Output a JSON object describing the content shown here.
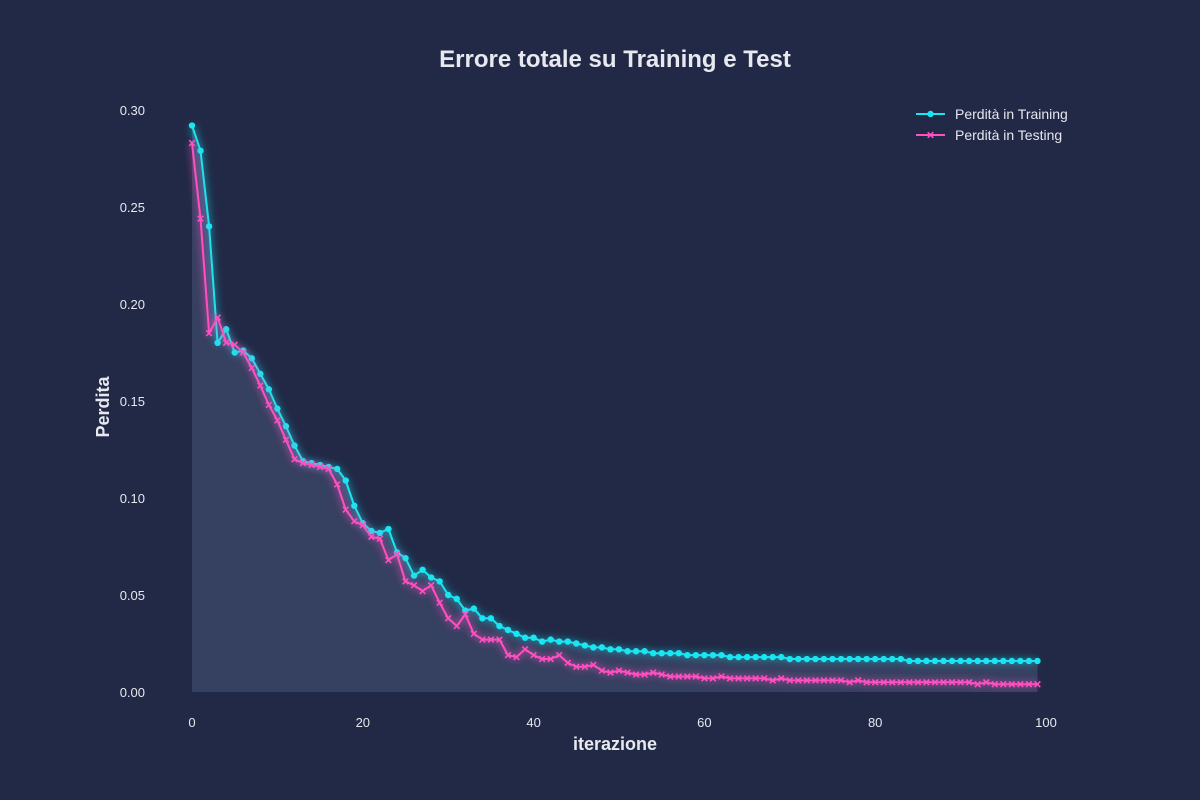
{
  "chart_data": {
    "type": "line",
    "title": "Errore totale su Training e Test",
    "xlabel": "iterazione",
    "ylabel": "Perdita",
    "xlim": [
      0,
      100
    ],
    "ylim": [
      0,
      0.3
    ],
    "xticks": [
      "0",
      "20",
      "40",
      "60",
      "80",
      "100"
    ],
    "yticks": [
      "0.00",
      "0.05",
      "0.10",
      "0.15",
      "0.20",
      "0.25",
      "0.30"
    ],
    "grid": false,
    "legend_position": "top-right",
    "x": [
      0,
      1,
      2,
      3,
      4,
      5,
      6,
      7,
      8,
      9,
      10,
      11,
      12,
      13,
      14,
      15,
      16,
      17,
      18,
      19,
      20,
      21,
      22,
      23,
      24,
      25,
      26,
      27,
      28,
      29,
      30,
      31,
      32,
      33,
      34,
      35,
      36,
      37,
      38,
      39,
      40,
      41,
      42,
      43,
      44,
      45,
      46,
      47,
      48,
      49,
      50,
      51,
      52,
      53,
      54,
      55,
      56,
      57,
      58,
      59,
      60,
      61,
      62,
      63,
      64,
      65,
      66,
      67,
      68,
      69,
      70,
      71,
      72,
      73,
      74,
      75,
      76,
      77,
      78,
      79,
      80,
      81,
      82,
      83,
      84,
      85,
      86,
      87,
      88,
      89,
      90,
      91,
      92,
      93,
      94,
      95,
      96,
      97,
      98,
      99
    ],
    "series": [
      {
        "name": "Perdità in Training",
        "color": "#18e6f2",
        "marker": "circle",
        "fill_under": true,
        "values": [
          0.292,
          0.279,
          0.24,
          0.18,
          0.187,
          0.175,
          0.176,
          0.172,
          0.164,
          0.156,
          0.146,
          0.137,
          0.127,
          0.119,
          0.118,
          0.117,
          0.116,
          0.115,
          0.109,
          0.096,
          0.087,
          0.083,
          0.082,
          0.084,
          0.072,
          0.069,
          0.06,
          0.063,
          0.059,
          0.057,
          0.05,
          0.048,
          0.042,
          0.043,
          0.038,
          0.038,
          0.034,
          0.032,
          0.03,
          0.028,
          0.028,
          0.026,
          0.027,
          0.026,
          0.026,
          0.025,
          0.024,
          0.023,
          0.023,
          0.022,
          0.022,
          0.021,
          0.021,
          0.021,
          0.02,
          0.02,
          0.02,
          0.02,
          0.019,
          0.019,
          0.019,
          0.019,
          0.019,
          0.018,
          0.018,
          0.018,
          0.018,
          0.018,
          0.018,
          0.018,
          0.017,
          0.017,
          0.017,
          0.017,
          0.017,
          0.017,
          0.017,
          0.017,
          0.017,
          0.017,
          0.017,
          0.017,
          0.017,
          0.017,
          0.016,
          0.016,
          0.016,
          0.016,
          0.016,
          0.016,
          0.016,
          0.016,
          0.016,
          0.016,
          0.016,
          0.016,
          0.016,
          0.016,
          0.016,
          0.016
        ]
      },
      {
        "name": "Perdità in Testing",
        "color": "#ff4fc0",
        "marker": "x",
        "fill_under": false,
        "values": [
          0.283,
          0.244,
          0.185,
          0.193,
          0.18,
          0.179,
          0.175,
          0.167,
          0.158,
          0.148,
          0.14,
          0.13,
          0.12,
          0.118,
          0.117,
          0.116,
          0.115,
          0.107,
          0.094,
          0.088,
          0.086,
          0.08,
          0.079,
          0.068,
          0.071,
          0.057,
          0.055,
          0.052,
          0.055,
          0.046,
          0.038,
          0.034,
          0.04,
          0.03,
          0.027,
          0.027,
          0.027,
          0.019,
          0.018,
          0.022,
          0.019,
          0.017,
          0.017,
          0.019,
          0.015,
          0.013,
          0.013,
          0.014,
          0.011,
          0.01,
          0.011,
          0.01,
          0.009,
          0.009,
          0.01,
          0.009,
          0.008,
          0.008,
          0.008,
          0.008,
          0.007,
          0.007,
          0.008,
          0.007,
          0.007,
          0.007,
          0.007,
          0.007,
          0.006,
          0.007,
          0.006,
          0.006,
          0.006,
          0.006,
          0.006,
          0.006,
          0.006,
          0.005,
          0.006,
          0.005,
          0.005,
          0.005,
          0.005,
          0.005,
          0.005,
          0.005,
          0.005,
          0.005,
          0.005,
          0.005,
          0.005,
          0.005,
          0.004,
          0.005,
          0.004,
          0.004,
          0.004,
          0.004,
          0.004,
          0.004
        ]
      }
    ]
  }
}
